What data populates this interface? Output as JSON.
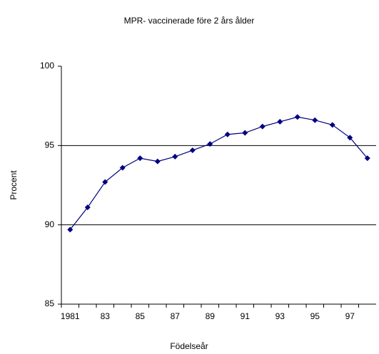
{
  "chart_data": {
    "type": "line",
    "title": "MPR- vaccinerade före 2 års ålder",
    "x_label": "Födelseår",
    "y_label": "Procent",
    "categories": [
      "1981",
      null,
      "83",
      null,
      "85",
      null,
      "87",
      null,
      "89",
      null,
      "91",
      null,
      "93",
      null,
      "95",
      null,
      "97",
      null
    ],
    "series": [
      {
        "name": "MPR",
        "color": "#000080",
        "values": [
          89.7,
          91.1,
          92.7,
          93.6,
          94.2,
          94.0,
          94.3,
          94.7,
          95.1,
          95.7,
          95.8,
          96.2,
          96.5,
          96.8,
          96.6,
          96.3,
          95.5,
          94.2
        ]
      }
    ],
    "ylim": [
      85,
      100
    ],
    "yticks": [
      85,
      90,
      95,
      100
    ],
    "grid": true
  }
}
